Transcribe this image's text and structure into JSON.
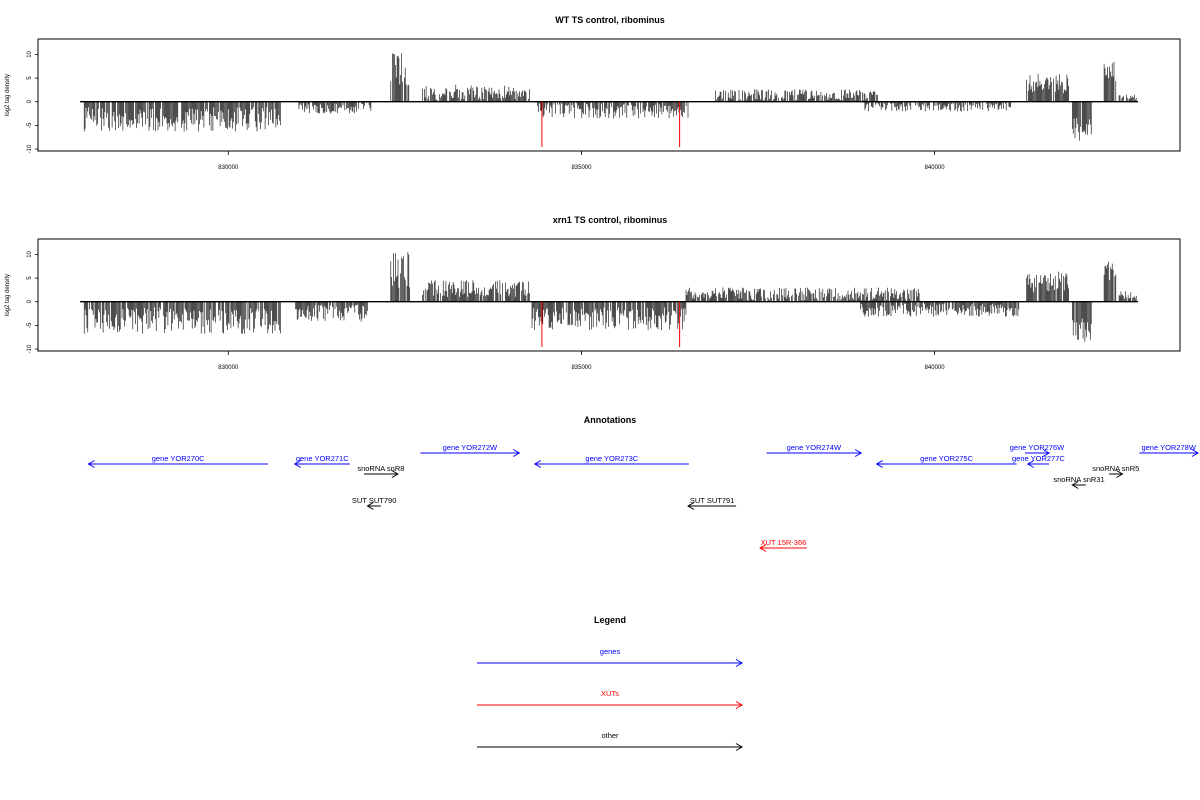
{
  "colors": {
    "genes": "#0000ff",
    "xuts": "#ff0000",
    "other": "#000000"
  },
  "chart_data": [
    {
      "type": "bar",
      "title": "WT TS control, ribominus",
      "ylabel": "log2 tag density",
      "xlim": [
        827900,
        842880
      ],
      "ylim": [
        -10,
        12
      ],
      "xticks": [
        830000,
        835000,
        840000
      ],
      "yticks": [
        -10,
        -5,
        0,
        5,
        10
      ],
      "marks": [
        834440,
        836390
      ],
      "regions": [
        {
          "from": 827960,
          "to": 830740,
          "strand": "-",
          "mean": -3.7,
          "var": 2.6
        },
        {
          "from": 831000,
          "to": 832030,
          "strand": "-",
          "mean": -1.2,
          "var": 1.3
        },
        {
          "from": 832300,
          "to": 832570,
          "strand": "+",
          "mean": 6.5,
          "var": 4.0
        },
        {
          "from": 832750,
          "to": 834270,
          "strand": "+",
          "mean": 2.0,
          "var": 1.6
        },
        {
          "from": 834380,
          "to": 836520,
          "strand": "-",
          "mean": -1.8,
          "var": 1.8
        },
        {
          "from": 836900,
          "to": 839200,
          "strand": "+",
          "mean": 1.2,
          "var": 1.4
        },
        {
          "from": 839000,
          "to": 841100,
          "strand": "-",
          "mean": -1.0,
          "var": 1.1
        },
        {
          "from": 841300,
          "to": 841900,
          "strand": "+",
          "mean": 3.8,
          "var": 2.2
        },
        {
          "from": 841950,
          "to": 842230,
          "strand": "-",
          "mean": -5.8,
          "var": 2.5
        },
        {
          "from": 842400,
          "to": 842570,
          "strand": "+",
          "mean": 6.4,
          "var": 2.5
        },
        {
          "from": 842600,
          "to": 842860,
          "strand": "+",
          "mean": 0.8,
          "var": 0.7
        }
      ]
    },
    {
      "type": "bar",
      "title": "xrn1 TS control, ribominus",
      "ylabel": "log2 tag density",
      "xlim": [
        827900,
        842880
      ],
      "ylim": [
        -10,
        12
      ],
      "xticks": [
        830000,
        835000,
        840000
      ],
      "yticks": [
        -10,
        -5,
        0,
        5,
        10
      ],
      "marks": [
        834440,
        836390
      ],
      "regions": [
        {
          "from": 827960,
          "to": 830740,
          "strand": "-",
          "mean": -4.0,
          "var": 2.8
        },
        {
          "from": 830950,
          "to": 831980,
          "strand": "-",
          "mean": -2.4,
          "var": 1.8
        },
        {
          "from": 832300,
          "to": 832570,
          "strand": "+",
          "mean": 6.8,
          "var": 4.0
        },
        {
          "from": 832750,
          "to": 834270,
          "strand": "+",
          "mean": 2.8,
          "var": 1.8
        },
        {
          "from": 834300,
          "to": 836480,
          "strand": "-",
          "mean": -3.6,
          "var": 2.4
        },
        {
          "from": 836480,
          "to": 839800,
          "strand": "+",
          "mean": 1.6,
          "var": 1.4
        },
        {
          "from": 838950,
          "to": 841200,
          "strand": "-",
          "mean": -1.8,
          "var": 1.4
        },
        {
          "from": 841300,
          "to": 841900,
          "strand": "+",
          "mean": 4.2,
          "var": 2.2
        },
        {
          "from": 841950,
          "to": 842230,
          "strand": "-",
          "mean": -6.0,
          "var": 2.5
        },
        {
          "from": 842400,
          "to": 842570,
          "strand": "+",
          "mean": 6.5,
          "var": 2.4
        },
        {
          "from": 842600,
          "to": 842860,
          "strand": "+",
          "mean": 1.5,
          "var": 1.0
        }
      ]
    }
  ],
  "annotations": {
    "title": "Annotations",
    "features": [
      {
        "label": "gene YOR270C",
        "from": 830560,
        "to": 828020,
        "row": 1,
        "kind": "genes"
      },
      {
        "label": "gene YOR271C",
        "from": 831720,
        "to": 830940,
        "row": 1,
        "kind": "genes"
      },
      {
        "label": "gene YOR272W",
        "from": 832720,
        "to": 834120,
        "row": 0,
        "kind": "genes"
      },
      {
        "label": "gene YOR273C",
        "from": 836520,
        "to": 834340,
        "row": 1,
        "kind": "genes"
      },
      {
        "label": "gene YOR274W",
        "from": 837620,
        "to": 838960,
        "row": 0,
        "kind": "genes"
      },
      {
        "label": "gene YOR275C",
        "from": 841160,
        "to": 839180,
        "row": 1,
        "kind": "genes"
      },
      {
        "label": "gene YOR276W",
        "from": 841280,
        "to": 841620,
        "row": 0,
        "kind": "genes"
      },
      {
        "label": "gene YOR277C",
        "from": 841620,
        "to": 841320,
        "row": 1,
        "kind": "genes"
      },
      {
        "label": "gene YOR278W",
        "from": 842900,
        "to": 843900,
        "row": 0,
        "kind": "genes"
      },
      {
        "label": "snoRNA snR8",
        "from": 831920,
        "to": 832400,
        "row": 2,
        "kind": "other"
      },
      {
        "label": "snoRNA snR5",
        "from": 842470,
        "to": 842660,
        "row": 2,
        "kind": "other"
      },
      {
        "label": "snoRNA snR31",
        "from": 842140,
        "to": 841950,
        "row": 3,
        "kind": "other"
      },
      {
        "label": "SUT SUT790",
        "from": 832160,
        "to": 831970,
        "row": 4,
        "kind": "other"
      },
      {
        "label": "SUT SUT791",
        "from": 837190,
        "to": 836510,
        "row": 4,
        "kind": "other"
      },
      {
        "label": "XUT 15R-366",
        "from": 838190,
        "to": 837530,
        "row": 5,
        "kind": "xuts"
      }
    ]
  },
  "legend": {
    "title": "Legend",
    "items": [
      {
        "label": "genes",
        "kind": "genes"
      },
      {
        "label": "XUTs",
        "kind": "xuts"
      },
      {
        "label": "other",
        "kind": "other"
      }
    ]
  }
}
